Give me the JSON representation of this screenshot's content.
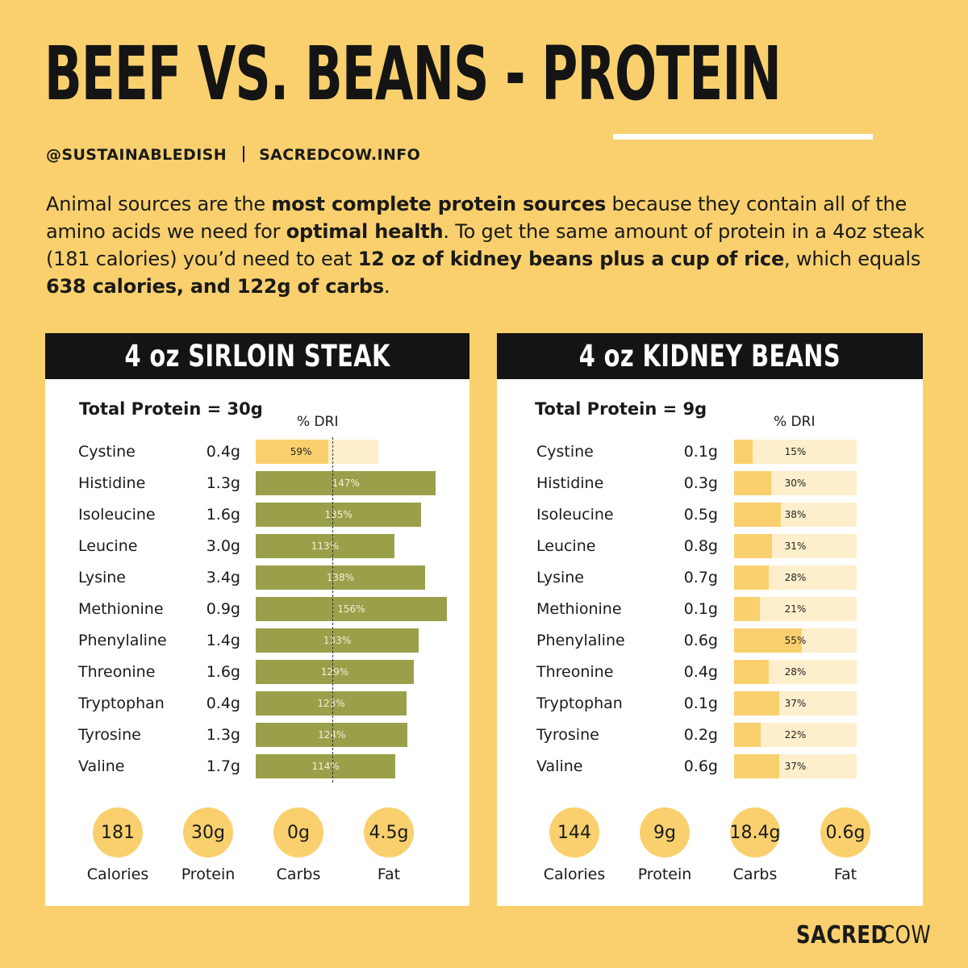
{
  "title": "BEEF VS. BEANS - PROTEIN",
  "handle": "@SUSTAINABLEDISH",
  "website": "SACREDCOW.INFO",
  "intro": {
    "t1": "Animal sources are the ",
    "b1": "most complete protein sources",
    "t2": " because they contain all of the amino acids we need for ",
    "b2": "optimal health",
    "t3": ". To get the same amount of protein in a 4oz steak (181 calories) you’d need to eat ",
    "b3": "12 oz of kidney beans plus a cup of rice",
    "t4": ", which equals ",
    "b4": "638 calories, and 122g of carbs",
    "t5": "."
  },
  "chart_data": [
    {
      "type": "bar",
      "title": "4 oz SIRLOIN STEAK",
      "subtitle": "Total Protein = 30g",
      "xlabel": "% DRI",
      "reference_line": 100,
      "categories": [
        "Cystine",
        "Histidine",
        "Isoleucine",
        "Leucine",
        "Lysine",
        "Methionine",
        "Phenylaline",
        "Threonine",
        "Tryptophan",
        "Tyrosine",
        "Valine"
      ],
      "amounts": [
        "0.4g",
        "1.3g",
        "1.6g",
        "3.0g",
        "3.4g",
        "0.9g",
        "1.4g",
        "1.6g",
        "0.4g",
        "1.3g",
        "1.7g"
      ],
      "values": [
        59,
        147,
        135,
        113,
        138,
        156,
        133,
        129,
        123,
        124,
        114
      ],
      "value_labels": [
        "59%",
        "147%",
        "135%",
        "113%",
        "138%",
        "156%",
        "133%",
        "129%",
        "123%",
        "124%",
        "114%"
      ],
      "stats": [
        {
          "value": "181",
          "label": "Calories"
        },
        {
          "value": "30g",
          "label": "Protein"
        },
        {
          "value": "0g",
          "label": "Carbs"
        },
        {
          "value": "4.5g",
          "label": "Fat"
        }
      ]
    },
    {
      "type": "bar",
      "title": "4 oz KIDNEY BEANS",
      "subtitle": "Total Protein = 9g",
      "xlabel": "% DRI",
      "categories": [
        "Cystine",
        "Histidine",
        "Isoleucine",
        "Leucine",
        "Lysine",
        "Methionine",
        "Phenylaline",
        "Threonine",
        "Tryptophan",
        "Tyrosine",
        "Valine"
      ],
      "amounts": [
        "0.1g",
        "0.3g",
        "0.5g",
        "0.8g",
        "0.7g",
        "0.1g",
        "0.6g",
        "0.4g",
        "0.1g",
        "0.2g",
        "0.6g"
      ],
      "values": [
        15,
        30,
        38,
        31,
        28,
        21,
        55,
        28,
        37,
        22,
        37
      ],
      "value_labels": [
        "15%",
        "30%",
        "38%",
        "31%",
        "28%",
        "21%",
        "55%",
        "28%",
        "37%",
        "22%",
        "37%"
      ],
      "stats": [
        {
          "value": "144",
          "label": "Calories"
        },
        {
          "value": "9g",
          "label": "Protein"
        },
        {
          "value": "18.4g",
          "label": "Carbs"
        },
        {
          "value": "0.6g",
          "label": "Fat"
        }
      ]
    }
  ],
  "brand": {
    "bold": "SACRED",
    "light": "COW"
  },
  "colors": {
    "background": "#f9d06d",
    "steak_bar": "#9aa04a",
    "track": "#fdefcc",
    "header": "#141414"
  }
}
